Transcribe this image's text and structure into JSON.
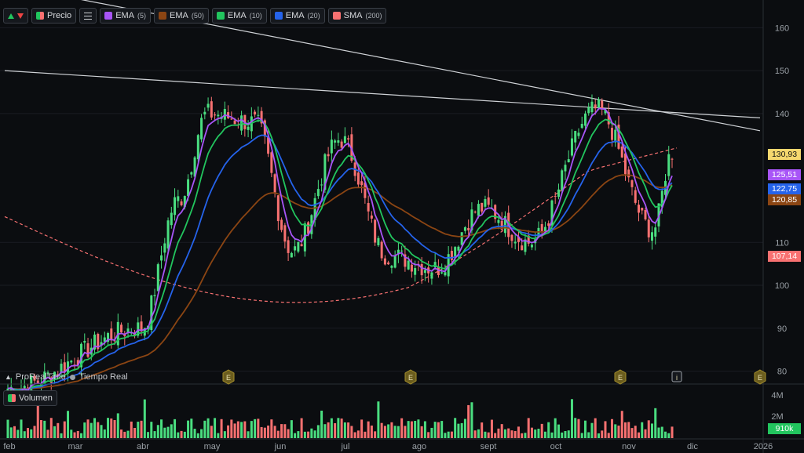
{
  "toolbar": {
    "price_label": "Precio",
    "indicators": [
      {
        "name": "EMA",
        "param": "(5)",
        "color": "#a855f7"
      },
      {
        "name": "EMA",
        "param": "(50)",
        "color": "#8b4513"
      },
      {
        "name": "EMA",
        "param": "(10)",
        "color": "#22c55e"
      },
      {
        "name": "EMA",
        "param": "(20)",
        "color": "#2563eb"
      },
      {
        "name": "SMA",
        "param": "(200)",
        "color": "#f87171"
      }
    ]
  },
  "brand": {
    "name": "ProRealTime",
    "mode": "Tiempo Real"
  },
  "volume": {
    "label": "Volumen",
    "last": "910k"
  },
  "chart_data": {
    "type": "candlestick",
    "y_axis": {
      "ticks": [
        160,
        150,
        140,
        110,
        100,
        90,
        80
      ],
      "range": [
        77,
        165
      ]
    },
    "volume_axis": {
      "ticks": [
        "4M",
        "2M"
      ]
    },
    "x_axis": {
      "labels": [
        "feb",
        "mar",
        "abr",
        "may",
        "jun",
        "jul",
        "ago",
        "sept",
        "oct",
        "nov",
        "dic",
        "2026"
      ]
    },
    "price_labels": [
      {
        "value": "130,93",
        "color": "#f5d76e",
        "text_color": "#111111"
      },
      {
        "value": "125,51",
        "color": "#a855f7",
        "text_color": "#ffffff"
      },
      {
        "value": "122,75",
        "color": "#2563eb",
        "text_color": "#ffffff"
      },
      {
        "value": "120,85",
        "color": "#8b4513",
        "text_color": "#ffffff"
      },
      {
        "value": "107,14",
        "color": "#f87171",
        "text_color": "#ffffff"
      }
    ],
    "event_markers": [
      "E",
      "E",
      "E",
      "i",
      "E"
    ],
    "series": [
      {
        "name": "Precio",
        "key_points": [
          [
            0,
            76
          ],
          [
            14,
            90
          ],
          [
            18,
            120
          ],
          [
            21,
            140
          ],
          [
            26,
            138
          ],
          [
            30,
            108
          ],
          [
            35,
            134
          ],
          [
            40,
            107
          ],
          [
            45,
            104
          ],
          [
            50,
            118
          ],
          [
            55,
            110
          ],
          [
            62,
            141
          ],
          [
            68,
            113
          ],
          [
            70,
            131
          ]
        ]
      }
    ],
    "trendlines": [
      {
        "from": [
          0,
          170
        ],
        "to": [
          72,
          136
        ]
      },
      {
        "from": [
          0,
          150
        ],
        "to": [
          72,
          139
        ]
      }
    ]
  }
}
